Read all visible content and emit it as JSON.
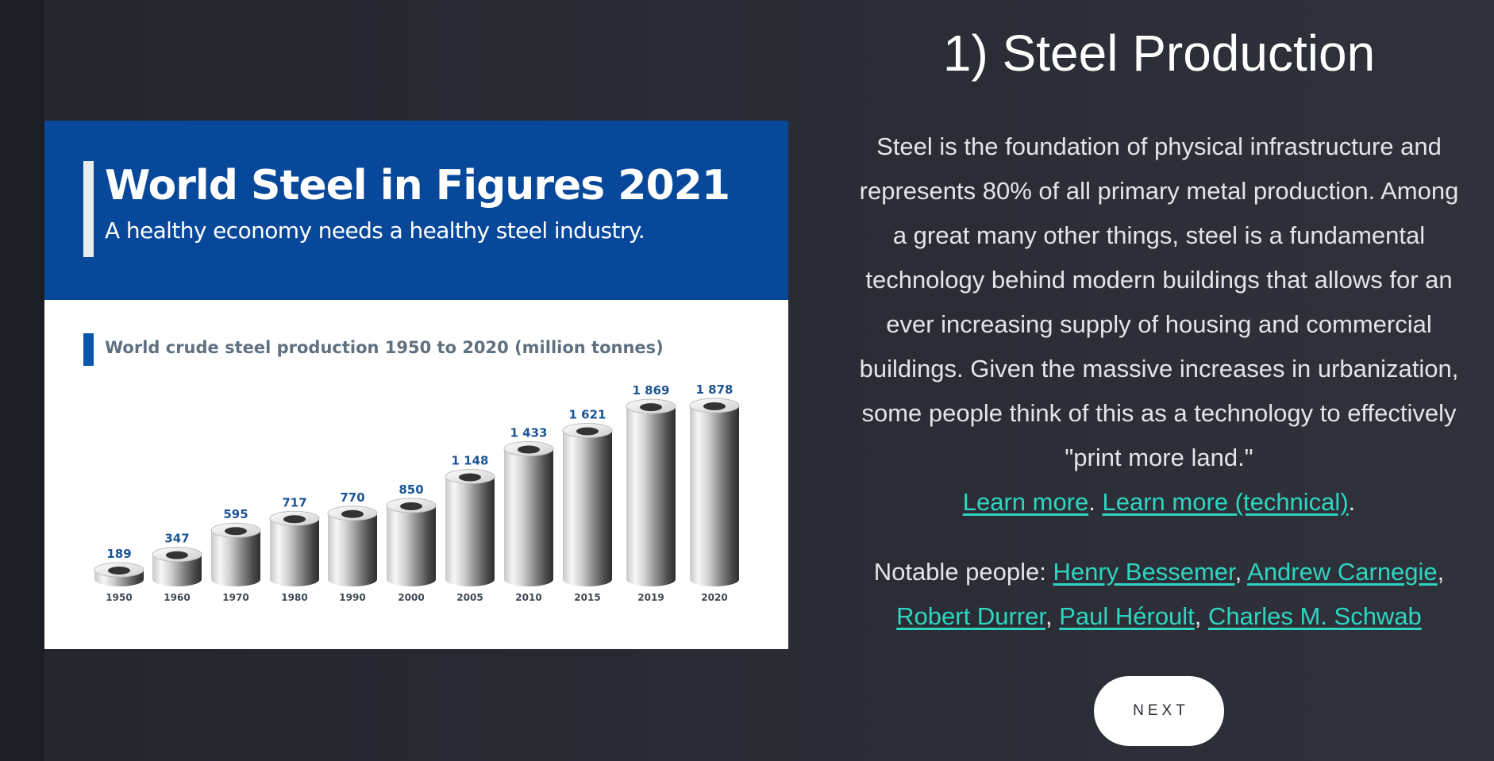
{
  "infographic": {
    "title": "World Steel in Figures 2021",
    "subtitle": "A healthy economy needs a healthy steel industry.",
    "colors": {
      "header": "#07489b",
      "value_label": "#1b5596",
      "year_label": "#3f4a55"
    },
    "chart_data": {
      "type": "bar",
      "title": "World crude steel production 1950 to 2020 (million tonnes)",
      "categories": [
        "1950",
        "1960",
        "1970",
        "1980",
        "1990",
        "2000",
        "2005",
        "2010",
        "2015",
        "2019",
        "2020"
      ],
      "values": [
        189,
        347,
        595,
        717,
        770,
        850,
        1148,
        1433,
        1621,
        1869,
        1878
      ],
      "value_labels": [
        "189",
        "347",
        "595",
        "717",
        "770",
        "850",
        "1 148",
        "1 433",
        "1 621",
        "1 869",
        "1 878"
      ],
      "ylim": [
        0,
        1900
      ],
      "grid": false,
      "legend": "none"
    }
  },
  "panel": {
    "heading": "1) Steel Production",
    "description": "Steel is the foundation of physical infrastructure and represents 80% of all primary metal production. Among a great many other things, steel is a fundamental technology behind modern buildings that allows for an ever increasing supply of housing and commercial buildings. Given the massive increases in urbanization, some people think of this as a technology to effectively \"print more land.\"",
    "learn_more": "Learn more",
    "learn_more_technical": "Learn more (technical)",
    "period": ".",
    "notable_label": "Notable people: ",
    "people": [
      "Henry Bessemer",
      "Andrew Carnegie",
      "Robert Durrer",
      "Paul Héroult",
      "Charles M. Schwab"
    ],
    "separator": ", ",
    "link_color": "#2ed6c0",
    "next_label": "NEXT"
  }
}
